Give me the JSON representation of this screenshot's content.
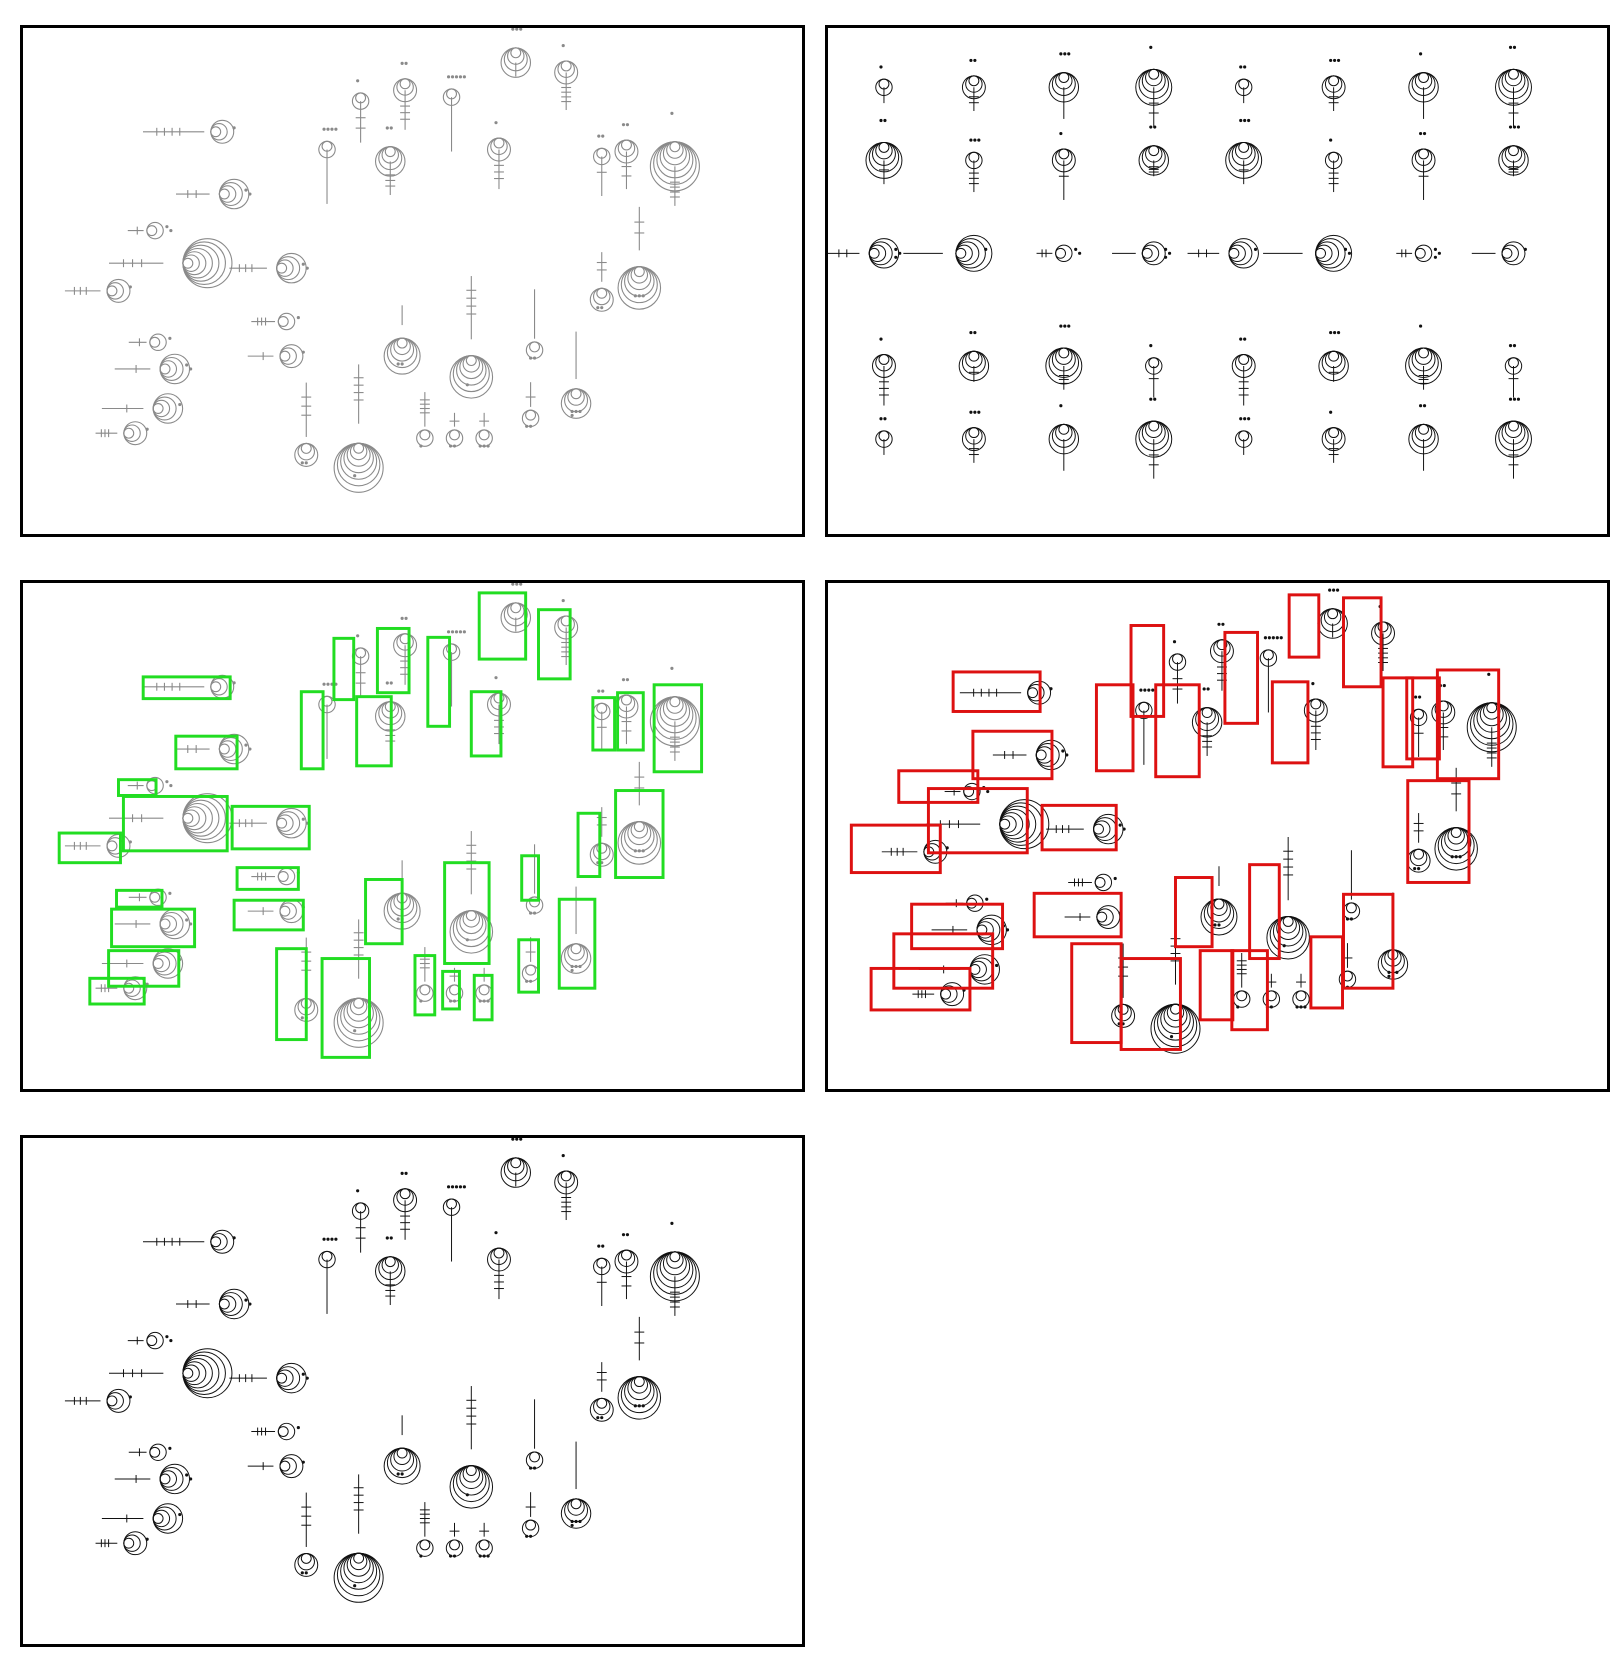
{
  "panels": [
    {
      "id": "p1",
      "name": "panel-pencil-sketch",
      "style": "sketch"
    },
    {
      "id": "p2",
      "name": "panel-symbol-grid",
      "style": "grid"
    },
    {
      "id": "p3",
      "name": "panel-green-detections",
      "style": "boxes"
    },
    {
      "id": "p4",
      "name": "panel-red-detections",
      "style": "boxes"
    },
    {
      "id": "p5",
      "name": "panel-clean-rendering",
      "style": "clean"
    }
  ],
  "colors": {
    "sketch_stroke": "#8a8a8a",
    "ink_stroke": "#111111",
    "green_box": "#22dd22",
    "red_box": "#dd1111",
    "panel_border": "#000000"
  }
}
